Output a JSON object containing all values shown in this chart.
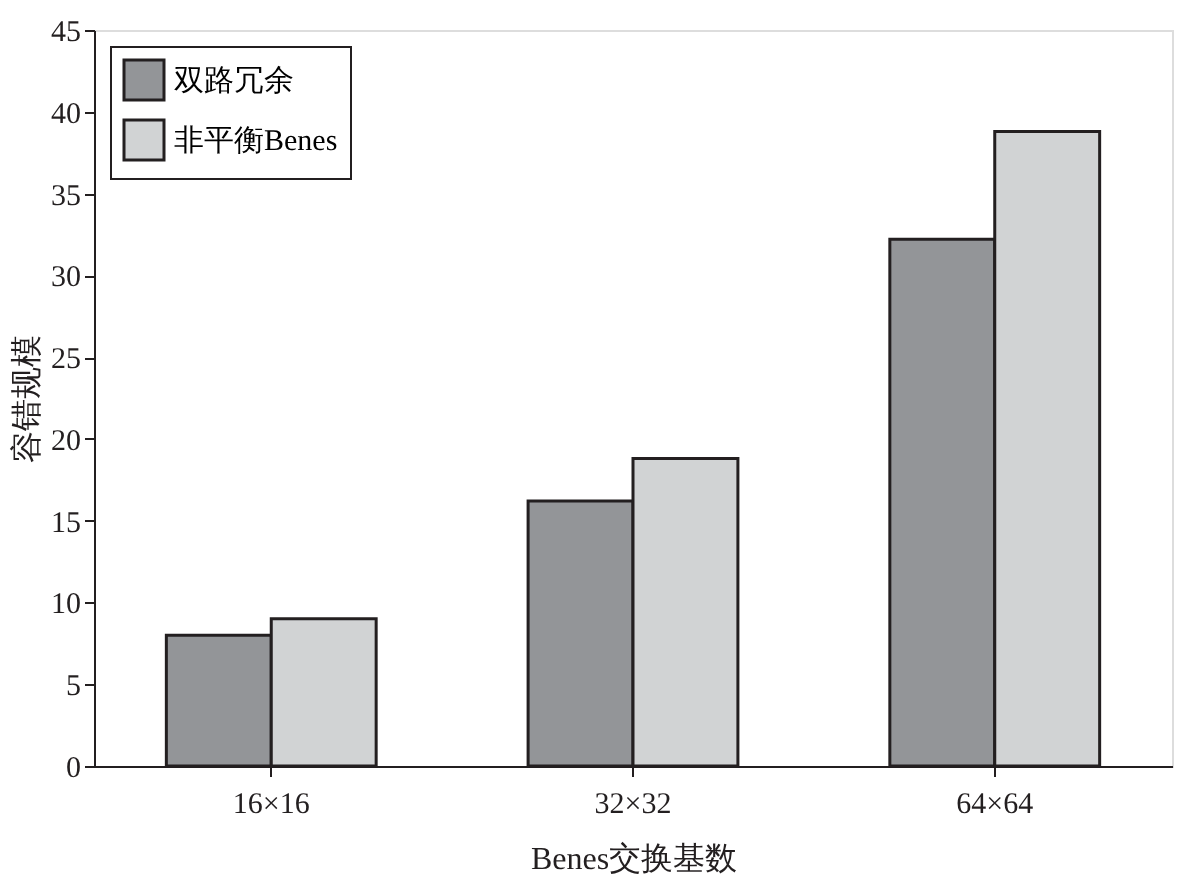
{
  "chart_data": {
    "type": "bar",
    "xlabel": "Benes交换基数",
    "ylabel": "容错规模",
    "categories": [
      "16×16",
      "32×32",
      "64×64"
    ],
    "series": [
      {
        "name": "双路冗余",
        "color": "#939598",
        "values": [
          8,
          16.2,
          32.2
        ]
      },
      {
        "name": "非平衡Benes",
        "color": "#d1d3d4",
        "values": [
          9,
          18.8,
          38.8
        ]
      }
    ],
    "ylim": [
      0,
      45
    ],
    "yticks": [
      0,
      5,
      10,
      15,
      20,
      25,
      30,
      35,
      40,
      45
    ],
    "grid": false,
    "legend": "top left"
  }
}
